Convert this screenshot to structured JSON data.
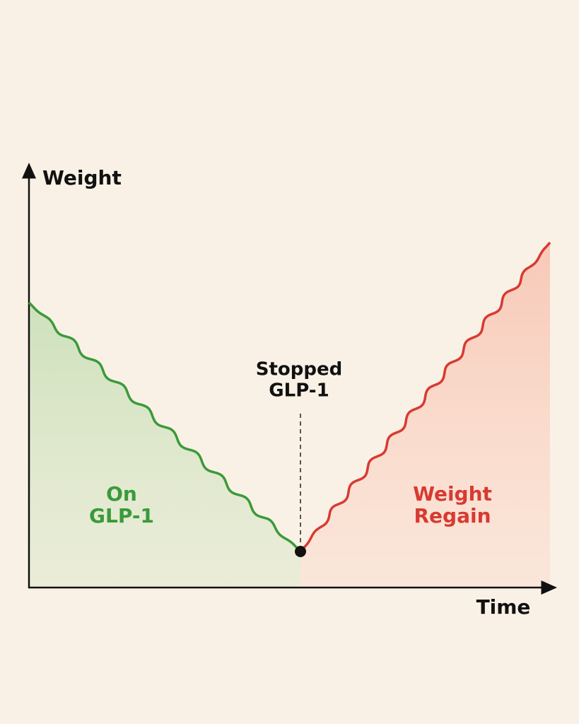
{
  "axes": {
    "y_label": "Weight",
    "x_label": "Time"
  },
  "annotations": {
    "stopped": [
      "Stopped",
      "GLP-1"
    ],
    "on": [
      "On",
      "GLP-1"
    ],
    "regain": [
      "Weight",
      "Regain"
    ]
  }
}
